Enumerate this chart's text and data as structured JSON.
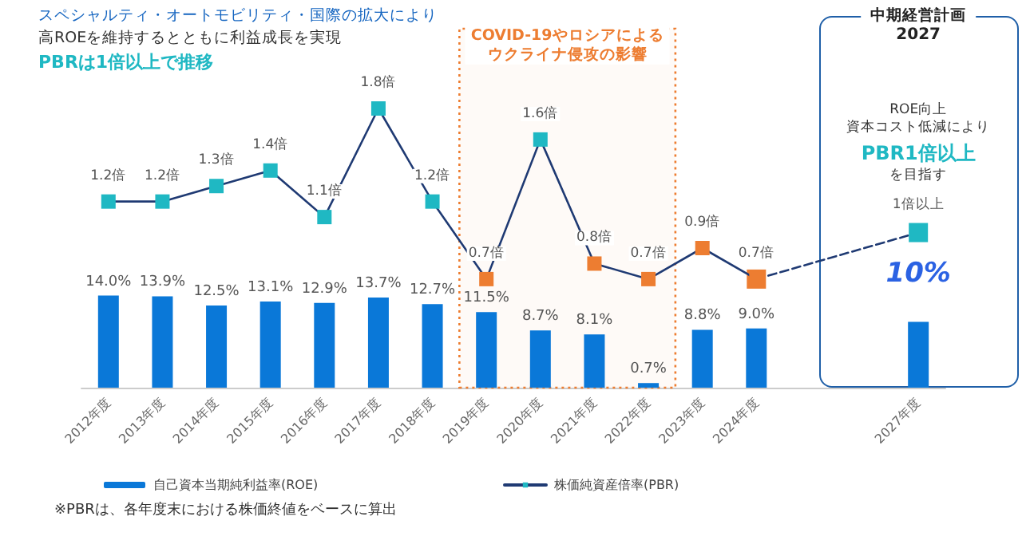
{
  "chart_data": [
    {
      "type": "bar",
      "categories": [
        "2012年度",
        "2013年度",
        "2014年度",
        "2015年度",
        "2016年度",
        "2017年度",
        "2018年度",
        "2019年度",
        "2020年度",
        "2021年度",
        "2022年度",
        "2023年度",
        "2024年度",
        null,
        null,
        "2027年度"
      ],
      "series": [
        {
          "name": "自己資本当期純利益率(ROE)",
          "color": "#0a78d8",
          "values": [
            14.0,
            13.9,
            12.5,
            13.1,
            12.9,
            13.7,
            12.7,
            11.5,
            8.7,
            8.1,
            0.7,
            8.8,
            9.0,
            null,
            null,
            10
          ],
          "value_labels": [
            "14.0%",
            "13.9%",
            "12.5%",
            "13.1%",
            "12.9%",
            "13.7%",
            "12.7%",
            "11.5%",
            "8.7%",
            "8.1%",
            "0.7%",
            "8.8%",
            "9.0%",
            null,
            null,
            "10%"
          ]
        }
      ],
      "bands": [
        {
          "axis": "x",
          "from": "2019年度",
          "to": "2022年度",
          "label": "COVID-19やロシアによるウクライナ侵攻の影響",
          "color": "#ed7d31"
        }
      ],
      "annotations": [
        "スペシャルティ・オートモビリティ・国際の拡大により",
        "高ROEを維持するとともに利益成長を実現",
        "PBRは1倍以上で推移",
        "中期経営計画",
        "2027",
        "ROE向上",
        "資本コスト低減により",
        "PBR1倍以上",
        "を目指す",
        "※PBRは、各年度末における株価終値をベースに算出"
      ],
      "legend": "bottom"
    },
    {
      "type": "line",
      "categories": [
        null,
        null,
        null,
        null,
        null,
        null,
        null,
        null,
        null,
        null,
        null,
        null,
        null,
        null,
        null,
        null
      ],
      "series": [
        {
          "name": "株価純資産倍率(PBR)",
          "color": "#1f3a73",
          "line_style": "solid",
          "colors": [
            "#1fb8c3",
            "#1fb8c3",
            "#1fb8c3",
            "#1fb8c3",
            "#1fb8c3",
            "#1fb8c3",
            "#1fb8c3",
            "#ed7d31",
            "#1fb8c3",
            "#ed7d31",
            "#ed7d31",
            "#ed7d31",
            "#ed7d31",
            null,
            null,
            null
          ],
          "values": [
            1.2,
            1.2,
            1.3,
            1.4,
            1.1,
            1.8,
            1.2,
            0.7,
            1.6,
            0.8,
            0.7,
            0.9,
            0.7,
            null,
            null,
            null
          ],
          "value_labels": [
            "1.2倍",
            "1.2倍",
            "1.3倍",
            "1.4倍",
            "1.1倍",
            "1.8倍",
            "1.2倍",
            "0.7倍",
            "1.6倍",
            "0.8倍",
            "0.7倍",
            "0.9倍",
            "0.7倍",
            null,
            null,
            null
          ]
        },
        {
          "color": "#1f3a73",
          "line_style": "dashed",
          "colors": [
            null,
            null,
            null,
            null,
            null,
            null,
            null,
            null,
            null,
            null,
            null,
            null,
            "#ed7d31",
            null,
            null,
            "#1fb8c3"
          ],
          "values": [
            null,
            null,
            null,
            null,
            null,
            null,
            null,
            null,
            null,
            null,
            null,
            null,
            0.7,
            null,
            null,
            1.0
          ],
          "value_labels": [
            null,
            null,
            null,
            null,
            null,
            null,
            null,
            null,
            null,
            null,
            null,
            null,
            null,
            null,
            null,
            "1倍以上"
          ]
        }
      ],
      "marker": "square",
      "tick_labels": false,
      "legend": "bottom"
    }
  ]
}
